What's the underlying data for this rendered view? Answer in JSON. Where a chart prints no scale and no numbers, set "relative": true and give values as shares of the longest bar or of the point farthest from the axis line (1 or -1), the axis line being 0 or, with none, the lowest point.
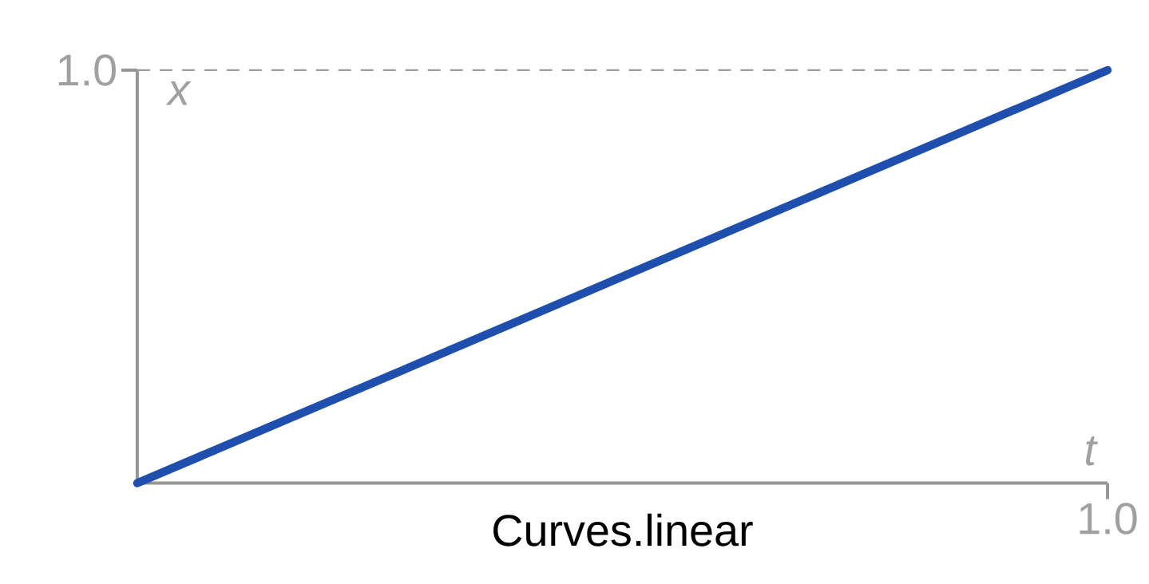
{
  "chart_data": {
    "type": "line",
    "title": "Curves.linear",
    "xlabel": "t",
    "ylabel": "x",
    "relative": true,
    "categories": [
      null,
      null
    ],
    "series": [
      {
        "color": "#1f4fae",
        "values": [
          0,
          1
        ]
      }
    ],
    "annotations": [
      "1.0",
      "1.0"
    ],
    "ref_lines": [
      {
        "axis": "y",
        "value": 1,
        "color": "#9e9e9e",
        "line_style": "dashed"
      }
    ],
    "marker": "none",
    "line_style": "solid"
  }
}
